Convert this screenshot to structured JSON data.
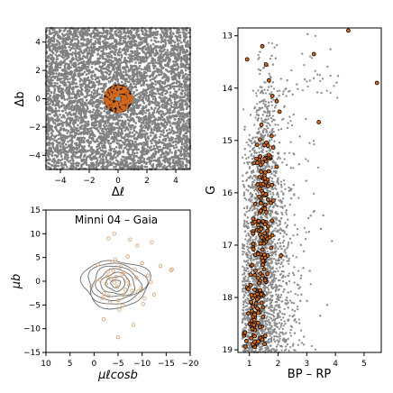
{
  "chart_data": [
    {
      "type": "scatter",
      "panel": "sky-positions",
      "xlabel": "Δℓ",
      "ylabel": "Δb",
      "xlim": [
        -5,
        5
      ],
      "ylim": [
        -5,
        5
      ],
      "xticks": [
        -4,
        -2,
        0,
        2,
        4
      ],
      "yticks": [
        -4,
        -2,
        0,
        2,
        4
      ],
      "field_color": "#808080",
      "member_color": "#d2691e",
      "center_color": "#4fa3d9",
      "series": [
        {
          "kind": "field-stars",
          "count": 5200,
          "x_range": [
            -5,
            5
          ],
          "y_range": [
            -5,
            5
          ]
        },
        {
          "kind": "members",
          "count": 220,
          "center": [
            0,
            0
          ],
          "radius": 1.0
        },
        {
          "kind": "center",
          "x": [
            0
          ],
          "y": [
            0
          ]
        }
      ]
    },
    {
      "type": "scatter",
      "panel": "proper-motions",
      "title": "Minni 04  –  Gaia",
      "xlabel": "μℓcosb",
      "ylabel": "μb",
      "xlim": [
        10,
        -20
      ],
      "ylim": [
        -15,
        15
      ],
      "xticks": [
        10,
        5,
        0,
        -5,
        -10,
        -15,
        -20
      ],
      "yticks": [
        -15,
        -10,
        -5,
        0,
        5,
        10,
        15
      ],
      "contour_color": "#6b6b6b",
      "member_color": "#d9a070",
      "contours": {
        "center": [
          -4.5,
          -0.5
        ],
        "semi_axes": [
          [
            1.0,
            0.8
          ],
          [
            2.0,
            1.5
          ],
          [
            3.0,
            2.2
          ],
          [
            4.0,
            2.9
          ],
          [
            5.0,
            3.6
          ],
          [
            6.0,
            4.3
          ],
          [
            7.0,
            5.0
          ]
        ]
      },
      "series": [
        {
          "kind": "members",
          "x": [
            -3.5,
            -4.8,
            -6.2,
            -2.1,
            -5.5,
            -7.3,
            -4.0,
            -3.0,
            -6.8,
            -5.1,
            -2.8,
            -8.5,
            -9.8,
            -11.2,
            -12.5,
            -1.2,
            0.5,
            -0.8,
            -10.5,
            -13.8,
            -16.0,
            -6.0,
            -4.4,
            -3.3,
            -7.9,
            -8.8,
            -2.5,
            -5.9,
            -6.5,
            -4.2,
            -3.8,
            -9.2,
            -1.8,
            -7.0,
            -5.3,
            -10.0,
            -11.8,
            -2.9,
            -4.6,
            -6.1
          ],
          "y": [
            0.5,
            -1.2,
            1.8,
            -2.5,
            3.0,
            -0.8,
            2.2,
            -3.1,
            0.1,
            -4.0,
            1.0,
            2.5,
            -1.5,
            1.2,
            -2.8,
            0.3,
            -1.0,
            3.5,
            -3.6,
            3.2,
            2.3,
            -5.1,
            4.6,
            -4.5,
            -2.0,
            0.8,
            -0.5,
            1.5,
            -1.8,
            -0.3,
            4.0,
            -2.2,
            -3.5,
            5.2,
            -6.0,
            3.8,
            -0.2,
            2.0,
            0.9,
            -2.9
          ]
        },
        {
          "kind": "outliers",
          "x": [
            -4.2,
            -7.5,
            -9.0,
            -3.0,
            -8.2,
            -5.0,
            -2.0,
            -12.0,
            -16.2,
            -10.2
          ],
          "y": [
            10.0,
            8.8,
            7.5,
            9.0,
            -9.2,
            -11.8,
            -8.0,
            8.2,
            2.5,
            -4.8
          ]
        }
      ]
    },
    {
      "type": "scatter",
      "panel": "color-magnitude",
      "xlabel": "BP – RP",
      "ylabel": "G",
      "xlim": [
        0.6,
        5.6
      ],
      "ylim": [
        19.05,
        12.85
      ],
      "xticks": [
        1,
        2,
        3,
        4,
        5
      ],
      "yticks": [
        13,
        14,
        15,
        16,
        17,
        18,
        19
      ],
      "field_color": "#8c8c8c",
      "member_color": "#d2691e",
      "sequence_ridge": {
        "G": [
          14.0,
          15.0,
          16.0,
          17.0,
          18.0,
          19.0
        ],
        "BP_RP": [
          1.55,
          1.45,
          1.45,
          1.4,
          1.3,
          1.2
        ]
      },
      "series": [
        {
          "kind": "field-stars",
          "count": 3800
        },
        {
          "kind": "members",
          "x": [
            4.45,
            0.92,
            1.45,
            1.58,
            1.68,
            1.95,
            2.05,
            3.25,
            3.42,
            5.45,
            1.8,
            1.42,
            1.65,
            1.95,
            1.25,
            1.35,
            1.4,
            1.55,
            2.1,
            1.1
          ],
          "y": [
            12.9,
            13.45,
            13.2,
            13.55,
            13.85,
            14.25,
            14.45,
            13.35,
            14.65,
            13.9,
            14.15,
            14.7,
            15.1,
            15.5,
            15.35,
            15.7,
            16.2,
            16.6,
            17.2,
            18.6
          ]
        },
        {
          "kind": "members-cloud",
          "count": 200
        }
      ]
    }
  ]
}
